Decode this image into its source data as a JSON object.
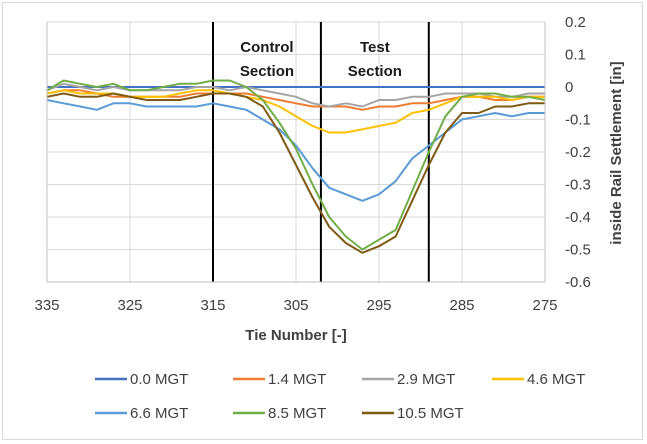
{
  "chart_data": {
    "type": "line",
    "title": "",
    "xlabel": "Tie Number [-]",
    "ylabel": "inside Rail Settlement [in]",
    "xlim": [
      335,
      275
    ],
    "ylim": [
      -0.6,
      0.2
    ],
    "x_ticks": [
      "335",
      "325",
      "315",
      "305",
      "295",
      "285",
      "275"
    ],
    "y_ticks": [
      "0.2",
      "0.1",
      "0",
      "-0.1",
      "-0.2",
      "-0.3",
      "-0.4",
      "-0.5",
      "-0.6"
    ],
    "grid": true,
    "legend_position": "bottom",
    "x": [
      335,
      333,
      331,
      329,
      327,
      325,
      323,
      321,
      319,
      317,
      315,
      313,
      311,
      309,
      307,
      305,
      303,
      301,
      299,
      297,
      295,
      293,
      291,
      289,
      287,
      285,
      283,
      281,
      279,
      277,
      275
    ],
    "section_boundaries": [
      315,
      302,
      289
    ],
    "annotations": [
      {
        "text": "Control",
        "x_center": 308.5
      },
      {
        "text": "Section",
        "x_center": 308.5
      },
      {
        "text": "Test",
        "x_center": 295.5
      },
      {
        "text": "Section",
        "x_center": 295.5
      }
    ],
    "series": [
      {
        "name": "0.0 MGT",
        "color": "#4472c4",
        "values": [
          0,
          0,
          0,
          0,
          0,
          0,
          0,
          0,
          0,
          0,
          0,
          0,
          0,
          0,
          0,
          0,
          0,
          0,
          0,
          0,
          0,
          0,
          0,
          0,
          0,
          0,
          0,
          0,
          0,
          0,
          0
        ]
      },
      {
        "name": "1.4 MGT",
        "color": "#ed7d31",
        "values": [
          -0.02,
          -0.01,
          -0.01,
          -0.02,
          -0.03,
          -0.03,
          -0.03,
          -0.03,
          -0.03,
          -0.02,
          -0.02,
          -0.02,
          -0.02,
          -0.03,
          -0.04,
          -0.05,
          -0.06,
          -0.06,
          -0.06,
          -0.07,
          -0.06,
          -0.06,
          -0.05,
          -0.05,
          -0.04,
          -0.03,
          -0.03,
          -0.04,
          -0.04,
          -0.03,
          -0.03
        ]
      },
      {
        "name": "2.9 MGT",
        "color": "#a5a5a5",
        "values": [
          -0.01,
          0.01,
          0.0,
          -0.01,
          0.0,
          -0.01,
          -0.01,
          -0.01,
          -0.01,
          0.0,
          0.0,
          -0.01,
          0.0,
          -0.01,
          -0.02,
          -0.03,
          -0.05,
          -0.06,
          -0.05,
          -0.06,
          -0.04,
          -0.04,
          -0.03,
          -0.03,
          -0.02,
          -0.02,
          -0.02,
          -0.03,
          -0.03,
          -0.02,
          -0.02
        ]
      },
      {
        "name": "4.6 MGT",
        "color": "#ffc000",
        "values": [
          -0.02,
          -0.01,
          -0.02,
          -0.02,
          -0.02,
          -0.03,
          -0.03,
          -0.03,
          -0.02,
          -0.01,
          -0.01,
          -0.02,
          -0.03,
          -0.04,
          -0.06,
          -0.09,
          -0.12,
          -0.14,
          -0.14,
          -0.13,
          -0.12,
          -0.11,
          -0.08,
          -0.07,
          -0.05,
          -0.03,
          -0.03,
          -0.03,
          -0.04,
          -0.03,
          -0.03
        ]
      },
      {
        "name": "6.6 MGT",
        "color": "#5b9bd5",
        "values": [
          -0.04,
          -0.05,
          -0.06,
          -0.07,
          -0.05,
          -0.05,
          -0.06,
          -0.06,
          -0.06,
          -0.06,
          -0.05,
          -0.06,
          -0.07,
          -0.1,
          -0.13,
          -0.18,
          -0.25,
          -0.31,
          -0.33,
          -0.35,
          -0.33,
          -0.29,
          -0.22,
          -0.18,
          -0.14,
          -0.1,
          -0.09,
          -0.08,
          -0.09,
          -0.08,
          -0.08
        ]
      },
      {
        "name": "8.5 MGT",
        "color": "#70ad47",
        "values": [
          -0.01,
          0.02,
          0.01,
          0.0,
          0.01,
          -0.01,
          -0.01,
          0.0,
          0.01,
          0.01,
          0.02,
          0.02,
          0.0,
          -0.04,
          -0.11,
          -0.19,
          -0.3,
          -0.4,
          -0.46,
          -0.5,
          -0.47,
          -0.44,
          -0.32,
          -0.2,
          -0.09,
          -0.03,
          -0.02,
          -0.02,
          -0.03,
          -0.03,
          -0.04
        ]
      },
      {
        "name": "10.5 MGT",
        "color": "#7f5a14",
        "values": [
          -0.03,
          -0.02,
          -0.03,
          -0.03,
          -0.02,
          -0.03,
          -0.04,
          -0.04,
          -0.04,
          -0.03,
          -0.02,
          -0.02,
          -0.03,
          -0.06,
          -0.14,
          -0.24,
          -0.34,
          -0.43,
          -0.48,
          -0.51,
          -0.49,
          -0.46,
          -0.35,
          -0.24,
          -0.14,
          -0.08,
          -0.08,
          -0.06,
          -0.06,
          -0.05,
          -0.05
        ]
      }
    ]
  }
}
